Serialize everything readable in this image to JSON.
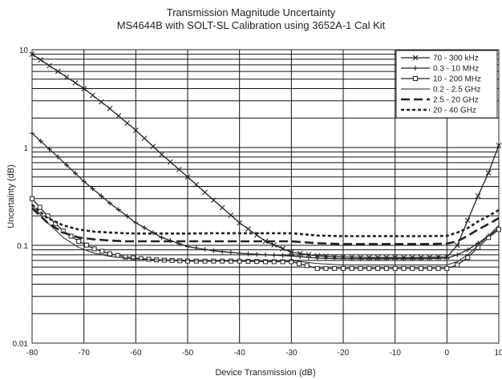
{
  "chart_data": {
    "type": "line",
    "title": "Transmission Magnitude Uncertainty",
    "subtitle": "MS4644B with SOLT-SL Calibration using 3652A-1 Cal Kit",
    "xlabel": "Device Transmission (dB)",
    "ylabel": "Uncertainty (dB)",
    "xlim": [
      -80,
      10
    ],
    "ylim": [
      0.01,
      10
    ],
    "yscale": "log",
    "xticks": [
      -80,
      -70,
      -60,
      -50,
      -40,
      -30,
      -20,
      -10,
      0,
      10
    ],
    "xtick_labels": [
      "-80",
      "-70",
      "-60",
      "-50",
      "-40",
      "-30",
      "-20",
      "-10",
      "0",
      "10"
    ],
    "yticks": [
      0.01,
      0.1,
      1,
      10
    ],
    "ytick_labels": [
      "0.01",
      "0.1",
      "1",
      "10"
    ],
    "grid": true,
    "legend_position": "top-right",
    "series": [
      {
        "name": "70 - 300 kHz",
        "color": "#222222",
        "marker": "x",
        "x": [
          -80,
          -75,
          -70,
          -65,
          -60,
          -55,
          -50,
          -45,
          -40,
          -35,
          -30,
          -25,
          -20,
          -15,
          -10,
          -5,
          0,
          2,
          4,
          6,
          8,
          10
        ],
        "y": [
          9.0,
          6.0,
          4.0,
          2.5,
          1.5,
          0.85,
          0.5,
          0.29,
          0.17,
          0.11,
          0.085,
          0.078,
          0.076,
          0.075,
          0.075,
          0.075,
          0.076,
          0.1,
          0.18,
          0.32,
          0.55,
          1.05
        ]
      },
      {
        "name": "0.3 - 10 MHz",
        "color": "#222222",
        "marker": "+",
        "x": [
          -80,
          -75,
          -70,
          -65,
          -60,
          -55,
          -50,
          -45,
          -40,
          -35,
          -30,
          -25,
          -20,
          -15,
          -10,
          -5,
          0,
          2,
          4,
          6,
          8,
          10
        ],
        "y": [
          1.4,
          0.8,
          0.45,
          0.27,
          0.17,
          0.12,
          0.097,
          0.088,
          0.083,
          0.08,
          0.078,
          0.074,
          0.073,
          0.073,
          0.073,
          0.073,
          0.074,
          0.08,
          0.09,
          0.105,
          0.125,
          0.15
        ]
      },
      {
        "name": "10 - 200 MHz",
        "color": "#222222",
        "marker": "square",
        "x": [
          -80,
          -77,
          -74,
          -71,
          -68,
          -65,
          -62,
          -59,
          -56,
          -53,
          -50,
          -45,
          -40,
          -35,
          -30,
          -27,
          -25,
          -20,
          -15,
          -10,
          -5,
          0,
          2,
          4,
          6,
          8,
          10
        ],
        "y": [
          0.3,
          0.2,
          0.14,
          0.11,
          0.092,
          0.082,
          0.076,
          0.073,
          0.071,
          0.07,
          0.069,
          0.069,
          0.069,
          0.068,
          0.068,
          0.062,
          0.058,
          0.058,
          0.058,
          0.058,
          0.058,
          0.058,
          0.063,
          0.075,
          0.095,
          0.12,
          0.145
        ]
      },
      {
        "name": "0.2 - 2.5 GHz",
        "color": "#222222",
        "marker": "none",
        "dash": "solid-thin",
        "x": [
          -80,
          -77,
          -74,
          -71,
          -68,
          -65,
          -62,
          -59,
          -56,
          -53,
          -50,
          -45,
          -40,
          -35,
          -30,
          -25,
          -20,
          -15,
          -10,
          -5,
          0,
          2,
          4,
          6,
          8,
          10
        ],
        "y": [
          0.26,
          0.17,
          0.12,
          0.095,
          0.083,
          0.077,
          0.074,
          0.072,
          0.071,
          0.071,
          0.07,
          0.07,
          0.07,
          0.07,
          0.07,
          0.065,
          0.063,
          0.063,
          0.063,
          0.063,
          0.063,
          0.068,
          0.08,
          0.1,
          0.125,
          0.16
        ]
      },
      {
        "name": "2.5 - 20 GHz",
        "color": "#222222",
        "marker": "none",
        "dash": "long-dash",
        "x": [
          -80,
          -77,
          -74,
          -71,
          -68,
          -65,
          -62,
          -59,
          -56,
          -53,
          -50,
          -45,
          -40,
          -35,
          -30,
          -25,
          -20,
          -15,
          -10,
          -5,
          0,
          2,
          4,
          6,
          8,
          10
        ],
        "y": [
          0.24,
          0.17,
          0.135,
          0.12,
          0.115,
          0.112,
          0.11,
          0.11,
          0.11,
          0.11,
          0.11,
          0.11,
          0.11,
          0.11,
          0.11,
          0.105,
          0.103,
          0.103,
          0.103,
          0.103,
          0.104,
          0.11,
          0.125,
          0.145,
          0.165,
          0.19
        ]
      },
      {
        "name": "20 - 40 GHz",
        "color": "#222222",
        "marker": "none",
        "dash": "short-dash",
        "x": [
          -80,
          -77,
          -74,
          -71,
          -68,
          -65,
          -62,
          -59,
          -56,
          -53,
          -50,
          -45,
          -40,
          -35,
          -30,
          -25,
          -20,
          -15,
          -10,
          -5,
          0,
          2,
          4,
          6,
          8,
          10
        ],
        "y": [
          0.26,
          0.19,
          0.16,
          0.145,
          0.138,
          0.135,
          0.133,
          0.132,
          0.132,
          0.132,
          0.132,
          0.133,
          0.133,
          0.133,
          0.133,
          0.126,
          0.124,
          0.124,
          0.124,
          0.124,
          0.125,
          0.135,
          0.15,
          0.175,
          0.2,
          0.23
        ]
      }
    ]
  }
}
